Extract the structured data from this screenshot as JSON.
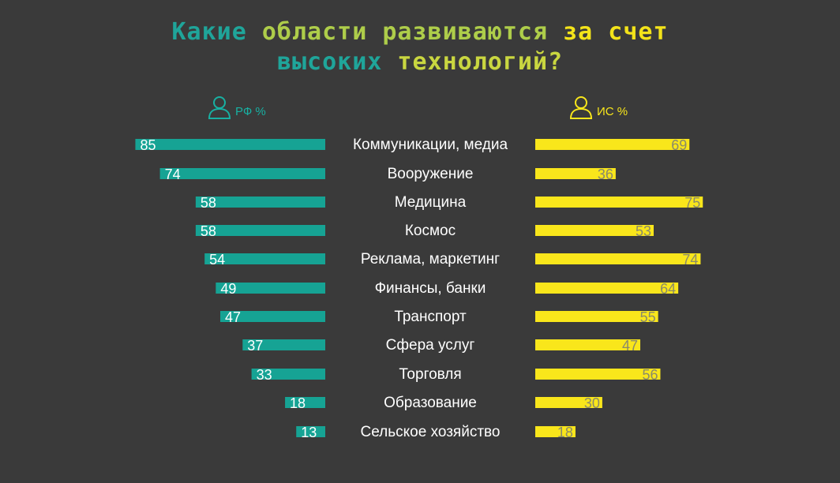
{
  "title": {
    "line1_parts": [
      "Какие",
      "области",
      "развиваются",
      "за",
      "счет"
    ],
    "line2_parts": [
      "высоких",
      "технологий?"
    ]
  },
  "legend": {
    "left_label": "РФ %",
    "left_icon": "person-outline-icon",
    "right_label": "ИС %",
    "right_icon": "person-outline-icon"
  },
  "colors": {
    "left": "#16a394",
    "right": "#f9e61b",
    "background": "#3a3a3a"
  },
  "chart_data": {
    "type": "bar",
    "orientation": "horizontal-diverging",
    "categories": [
      "Коммуникации, медиа",
      "Вооружение",
      "Медицина",
      "Космос",
      "Реклама, маркетинг",
      "Финансы, банки",
      "Транспорт",
      "Сфера услуг",
      "Торговля",
      "Образование",
      "Сельское хозяйство"
    ],
    "series": [
      {
        "name": "РФ %",
        "values": [
          85,
          74,
          58,
          58,
          54,
          49,
          47,
          37,
          33,
          18,
          13
        ]
      },
      {
        "name": "ИС %",
        "values": [
          69,
          36,
          75,
          53,
          74,
          64,
          55,
          47,
          56,
          30,
          18
        ]
      }
    ],
    "xlim": [
      0,
      85
    ],
    "grid": false,
    "legend_position": "top"
  }
}
